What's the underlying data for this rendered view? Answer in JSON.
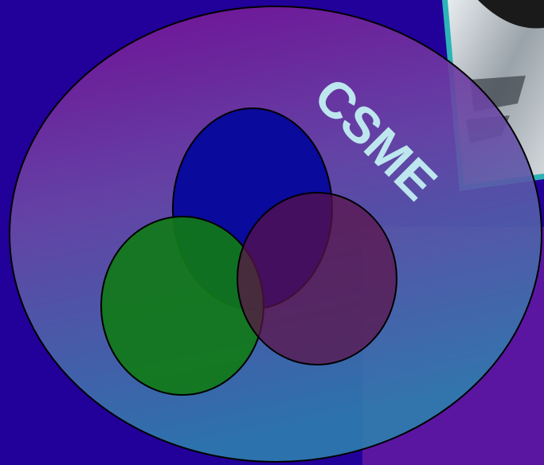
{
  "diagram": {
    "label": "CSME"
  }
}
